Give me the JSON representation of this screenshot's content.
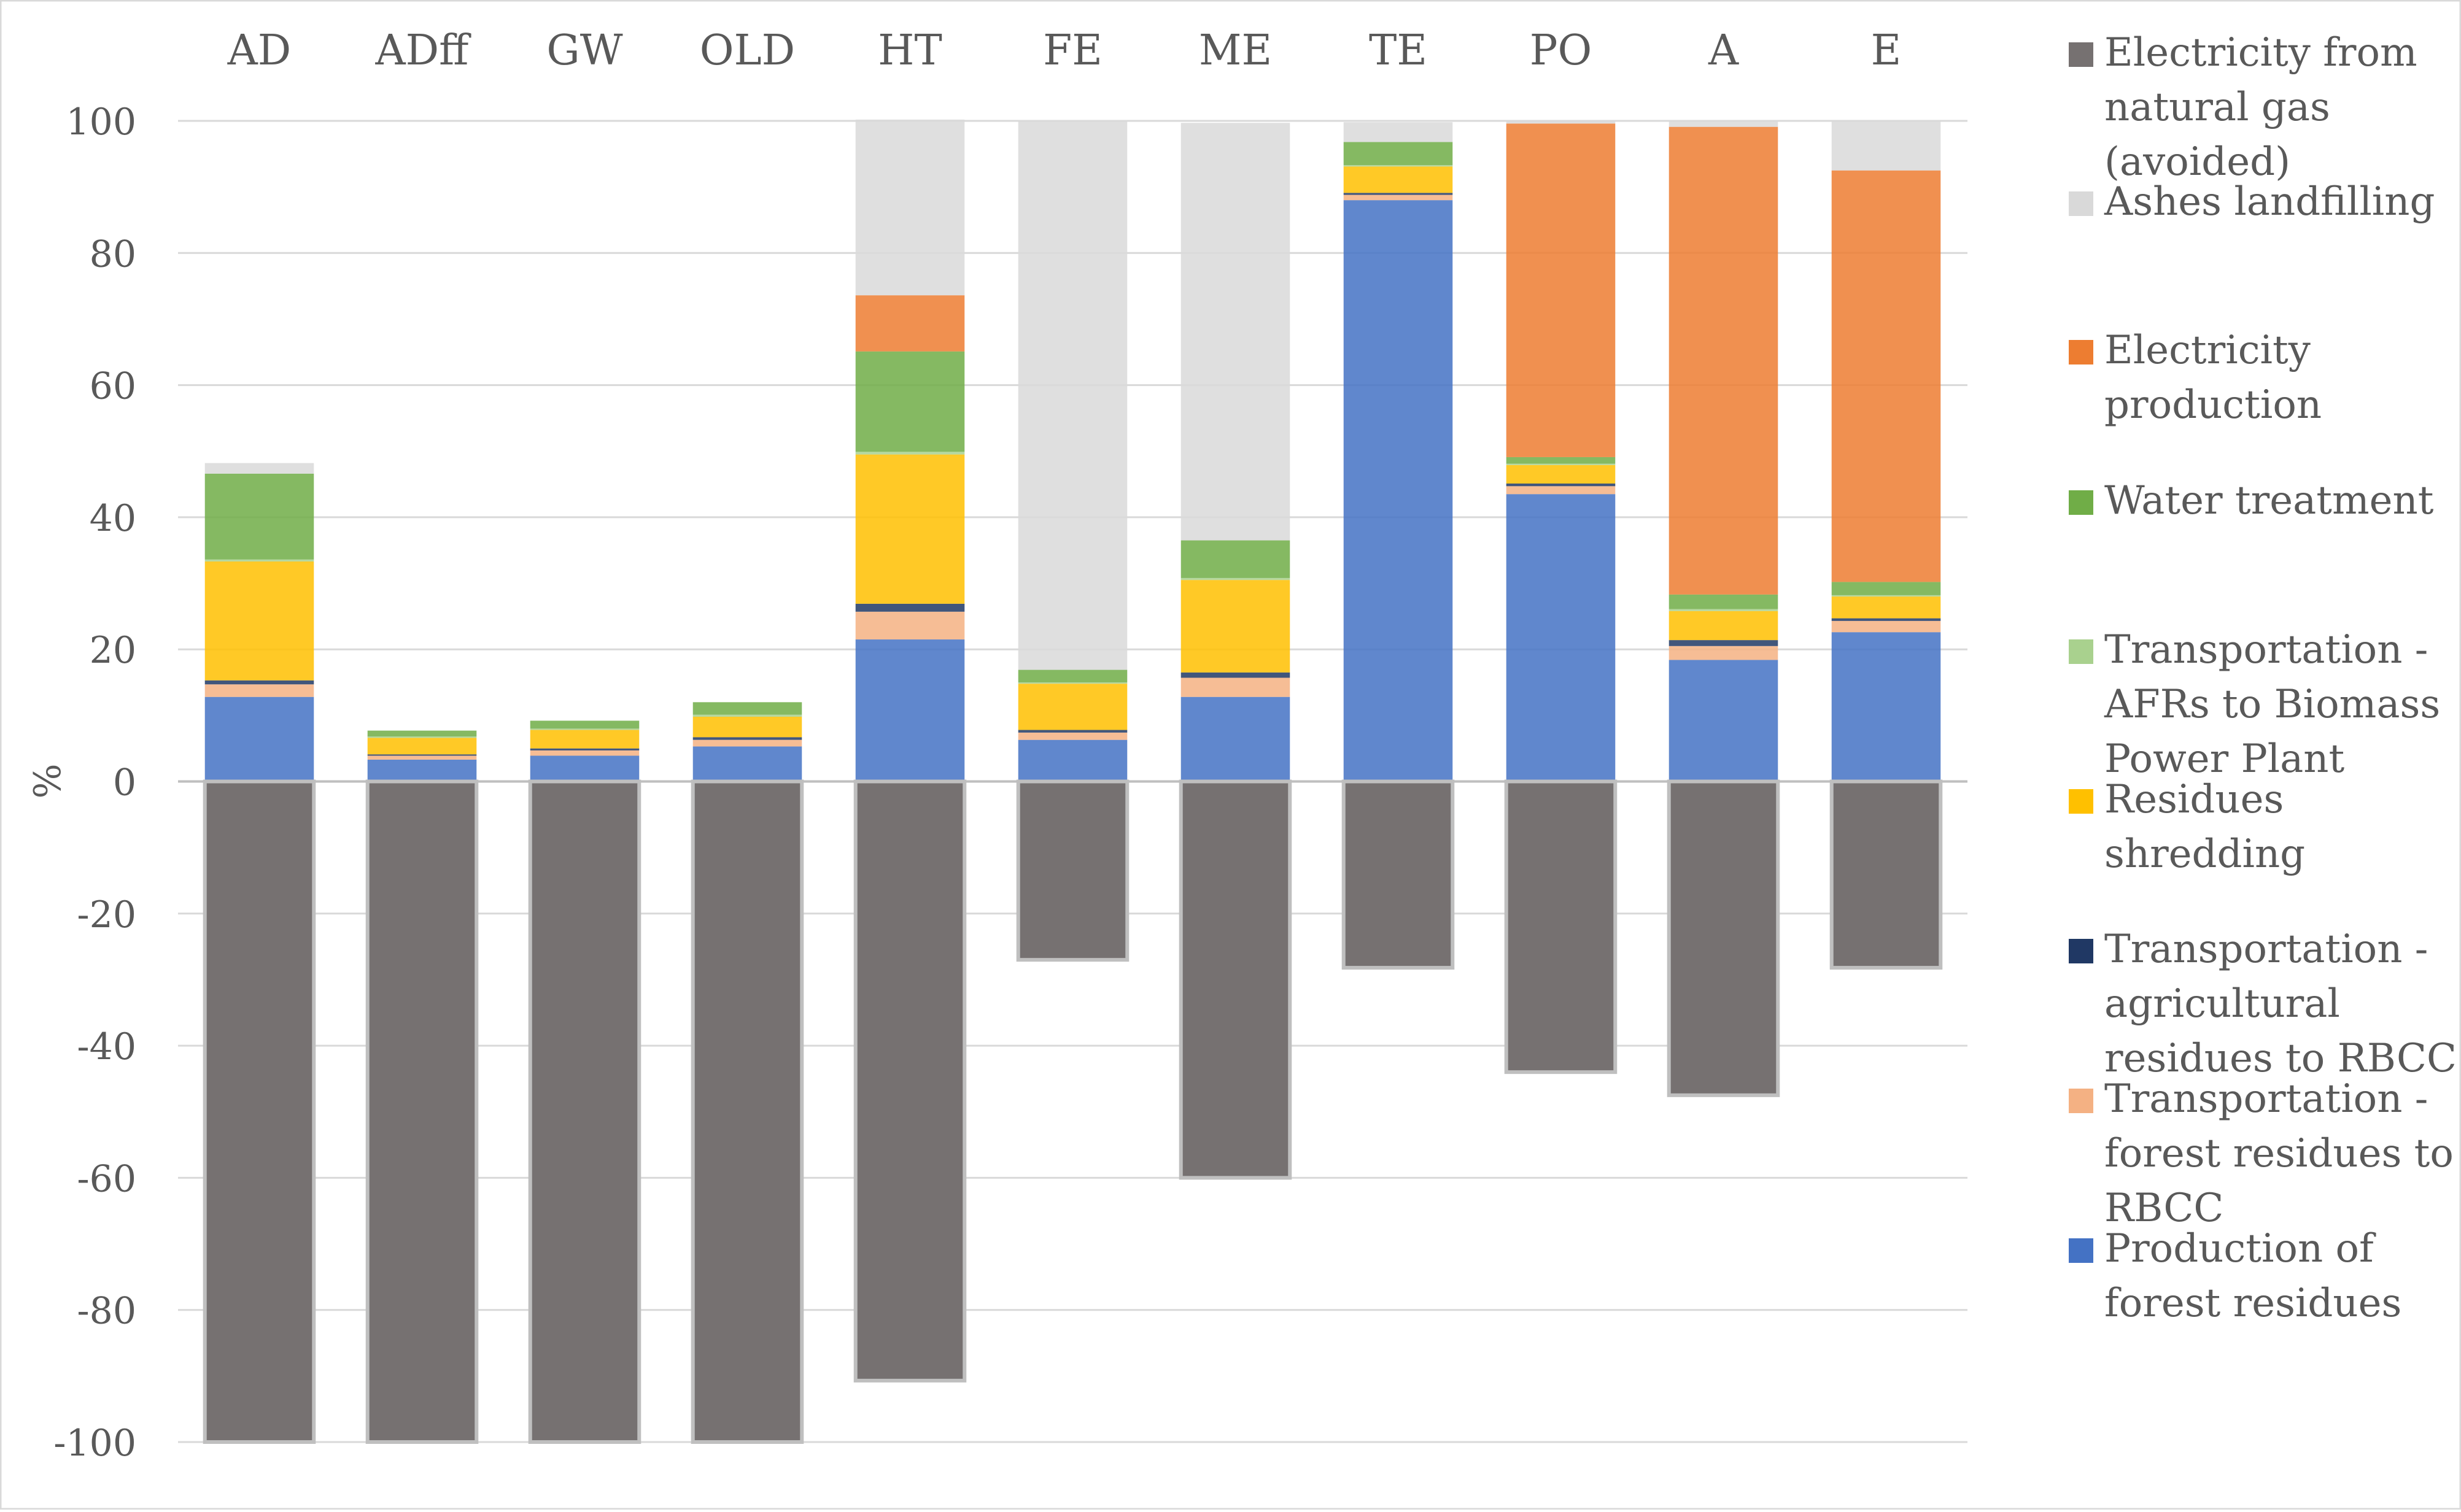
{
  "chart_data": {
    "type": "bar",
    "stacked": true,
    "title": "",
    "xlabel": "",
    "ylabel": "%",
    "ylim": [
      -100,
      100
    ],
    "yticks": [
      100,
      80,
      60,
      40,
      20,
      0,
      -20,
      -40,
      -60,
      -80,
      -100
    ],
    "ytick_labels": [
      "100",
      "80",
      "60",
      "40",
      "20",
      "0",
      "-20",
      "-40",
      "-60",
      "-80",
      "-100"
    ],
    "categories": [
      "AD",
      "ADff",
      "GW",
      "OLD",
      "HT",
      "FE",
      "ME",
      "TE",
      "PO",
      "A",
      "E"
    ],
    "x_labels_position": "top",
    "grid": true,
    "legend_position": "right",
    "series": [
      {
        "name": "Production of forest residues",
        "color": "#4472C4",
        "values": [
          12.8,
          3.3,
          3.9,
          5.3,
          21.5,
          6.3,
          12.8,
          88,
          43.5,
          18.4,
          22.6
        ]
      },
      {
        "name": "Transportation - forest residues to RBCC",
        "color": "#F4B183",
        "values": [
          1.9,
          0.6,
          0.8,
          1,
          4.2,
          1.1,
          2.9,
          0.8,
          1.2,
          2.1,
          1.7
        ]
      },
      {
        "name": "Transportation - agricultural residues to RBCC",
        "color": "#203864",
        "values": [
          0.6,
          0.2,
          0.3,
          0.4,
          1.2,
          0.4,
          0.8,
          0.3,
          0.4,
          0.9,
          0.4
        ]
      },
      {
        "name": "Residues shredding",
        "color": "#FFC000",
        "values": [
          18,
          2.5,
          2.8,
          3.1,
          22.6,
          7,
          14,
          4,
          2.8,
          4.4,
          3.3
        ]
      },
      {
        "name": "Transportation - AFRs to Biomass Power Plant",
        "color": "#A9D18E",
        "values": [
          0.3,
          0.2,
          0.2,
          0.3,
          0.4,
          0.2,
          0.3,
          0.2,
          0.2,
          0.3,
          0.2
        ]
      },
      {
        "name": "Water treatment",
        "color": "#70AD47",
        "values": [
          13,
          0.9,
          1.2,
          1.9,
          15.2,
          1.9,
          5.7,
          3.5,
          1,
          2.2,
          2
        ]
      },
      {
        "name": "Electricity production",
        "color": "#ED7D31",
        "values": [
          0,
          0,
          0,
          0,
          8.5,
          0,
          0,
          0,
          50.5,
          70.8,
          62.3
        ]
      },
      {
        "name": "Ashes landfilling",
        "color": "#D9D9D9",
        "values": [
          1.6,
          0,
          0,
          0,
          26.6,
          83.2,
          63.2,
          3,
          0.3,
          0.8,
          7.5
        ]
      },
      {
        "name": "Electricity from natural gas (avoided)",
        "color": "#767171",
        "values": [
          -100,
          -100,
          -100,
          -100,
          -90.7,
          -27,
          -60,
          -28.2,
          -44,
          -47.5,
          -28.2
        ]
      }
    ]
  }
}
